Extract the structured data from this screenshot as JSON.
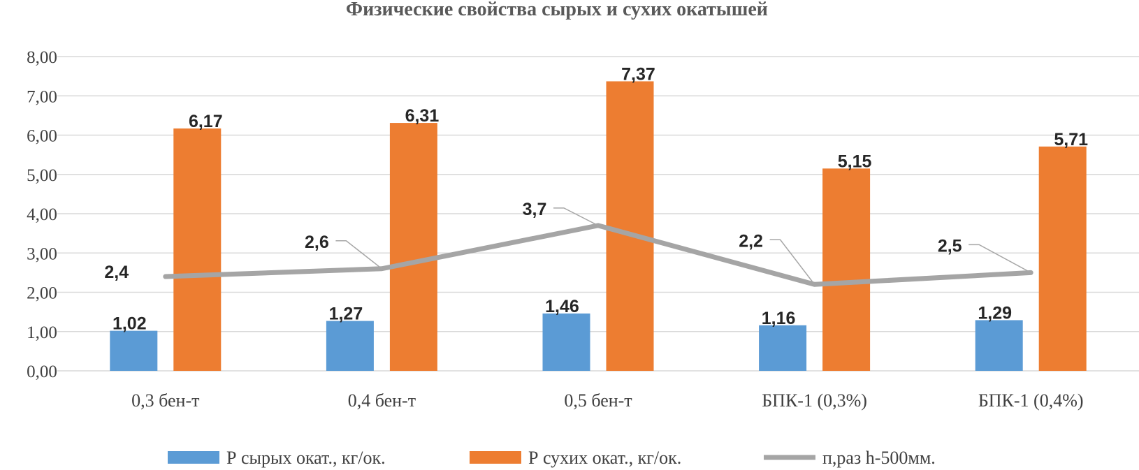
{
  "chart_data": {
    "type": "bar",
    "title": "Физические свойства сырых и сухих окатышей",
    "categories": [
      "0,3 бен-т",
      "0,4 бен-т",
      "0,5 бен-т",
      "БПК-1 (0,3%)",
      "БПК-1 (0,4%)"
    ],
    "ylim": [
      0,
      8
    ],
    "yticks": [
      "0,00",
      "1,00",
      "2,00",
      "3,00",
      "4,00",
      "5,00",
      "6,00",
      "7,00",
      "8,00"
    ],
    "grid": true,
    "legend_position": "bottom",
    "series": [
      {
        "name": "Р сырых окат., кг/ок.",
        "type": "bar",
        "color": "#5b9bd5",
        "values": [
          1.02,
          1.27,
          1.46,
          1.16,
          1.29
        ],
        "labels": [
          "1,02",
          "1,27",
          "1,46",
          "1,16",
          "1,29"
        ]
      },
      {
        "name": "Р сухих окат., кг/ок.",
        "type": "bar",
        "color": "#ed7d31",
        "values": [
          6.17,
          6.31,
          7.37,
          5.15,
          5.71
        ],
        "labels": [
          "6,17",
          "6,31",
          "7,37",
          "5,15",
          "5,71"
        ]
      },
      {
        "name": "п,раз h-500мм.",
        "type": "line",
        "color": "#a5a5a5",
        "values": [
          2.4,
          2.6,
          3.7,
          2.2,
          2.5
        ],
        "labels": [
          "2,4",
          "2,6",
          "3,7",
          "2,2",
          "2,5"
        ]
      }
    ]
  }
}
